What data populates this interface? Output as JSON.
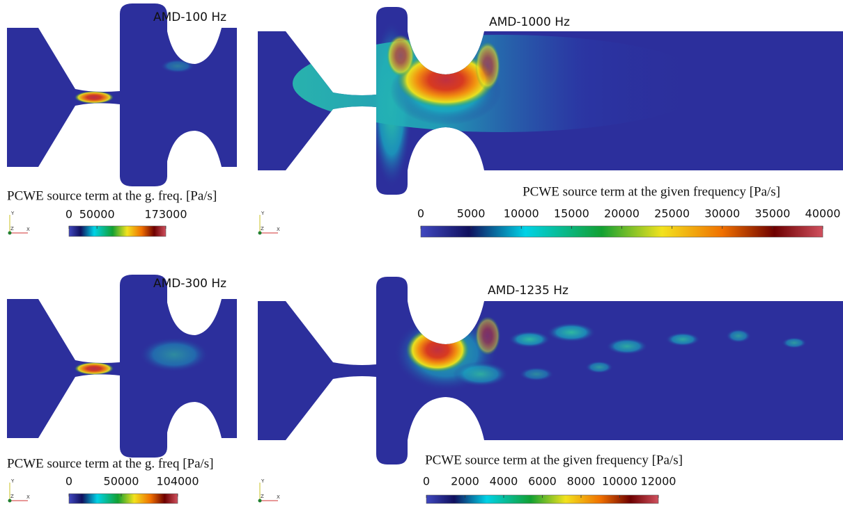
{
  "panels": [
    {
      "label": "AMD-100 Hz",
      "colorbar": {
        "title": "PCWE source term at the g. freq. [Pa/s]",
        "ticks": [
          0,
          50000,
          173000
        ]
      },
      "triad": {
        "y": "Y",
        "z": "Z",
        "x": "X"
      }
    },
    {
      "label": "AMD-1000 Hz",
      "colorbar": {
        "title": "PCWE source term at the given frequency [Pa/s]",
        "ticks": [
          0,
          5000,
          10000,
          15000,
          20000,
          25000,
          30000,
          35000,
          40000
        ]
      },
      "triad": {
        "y": "Y",
        "z": "Z",
        "x": "X"
      }
    },
    {
      "label": "AMD-300 Hz",
      "colorbar": {
        "title": "PCWE source term at the g. freq [Pa/s]",
        "ticks": [
          0,
          50000,
          104000
        ]
      },
      "triad": {
        "y": "Y",
        "z": "Z",
        "x": "X"
      }
    },
    {
      "label": "AMD-1235 Hz",
      "colorbar": {
        "title": "PCWE source term at the given frequency [Pa/s]",
        "ticks": [
          0,
          2000,
          4000,
          6000,
          8000,
          10000,
          12000
        ]
      },
      "triad": {
        "y": "Y",
        "z": "Z",
        "x": "X"
      }
    }
  ]
}
